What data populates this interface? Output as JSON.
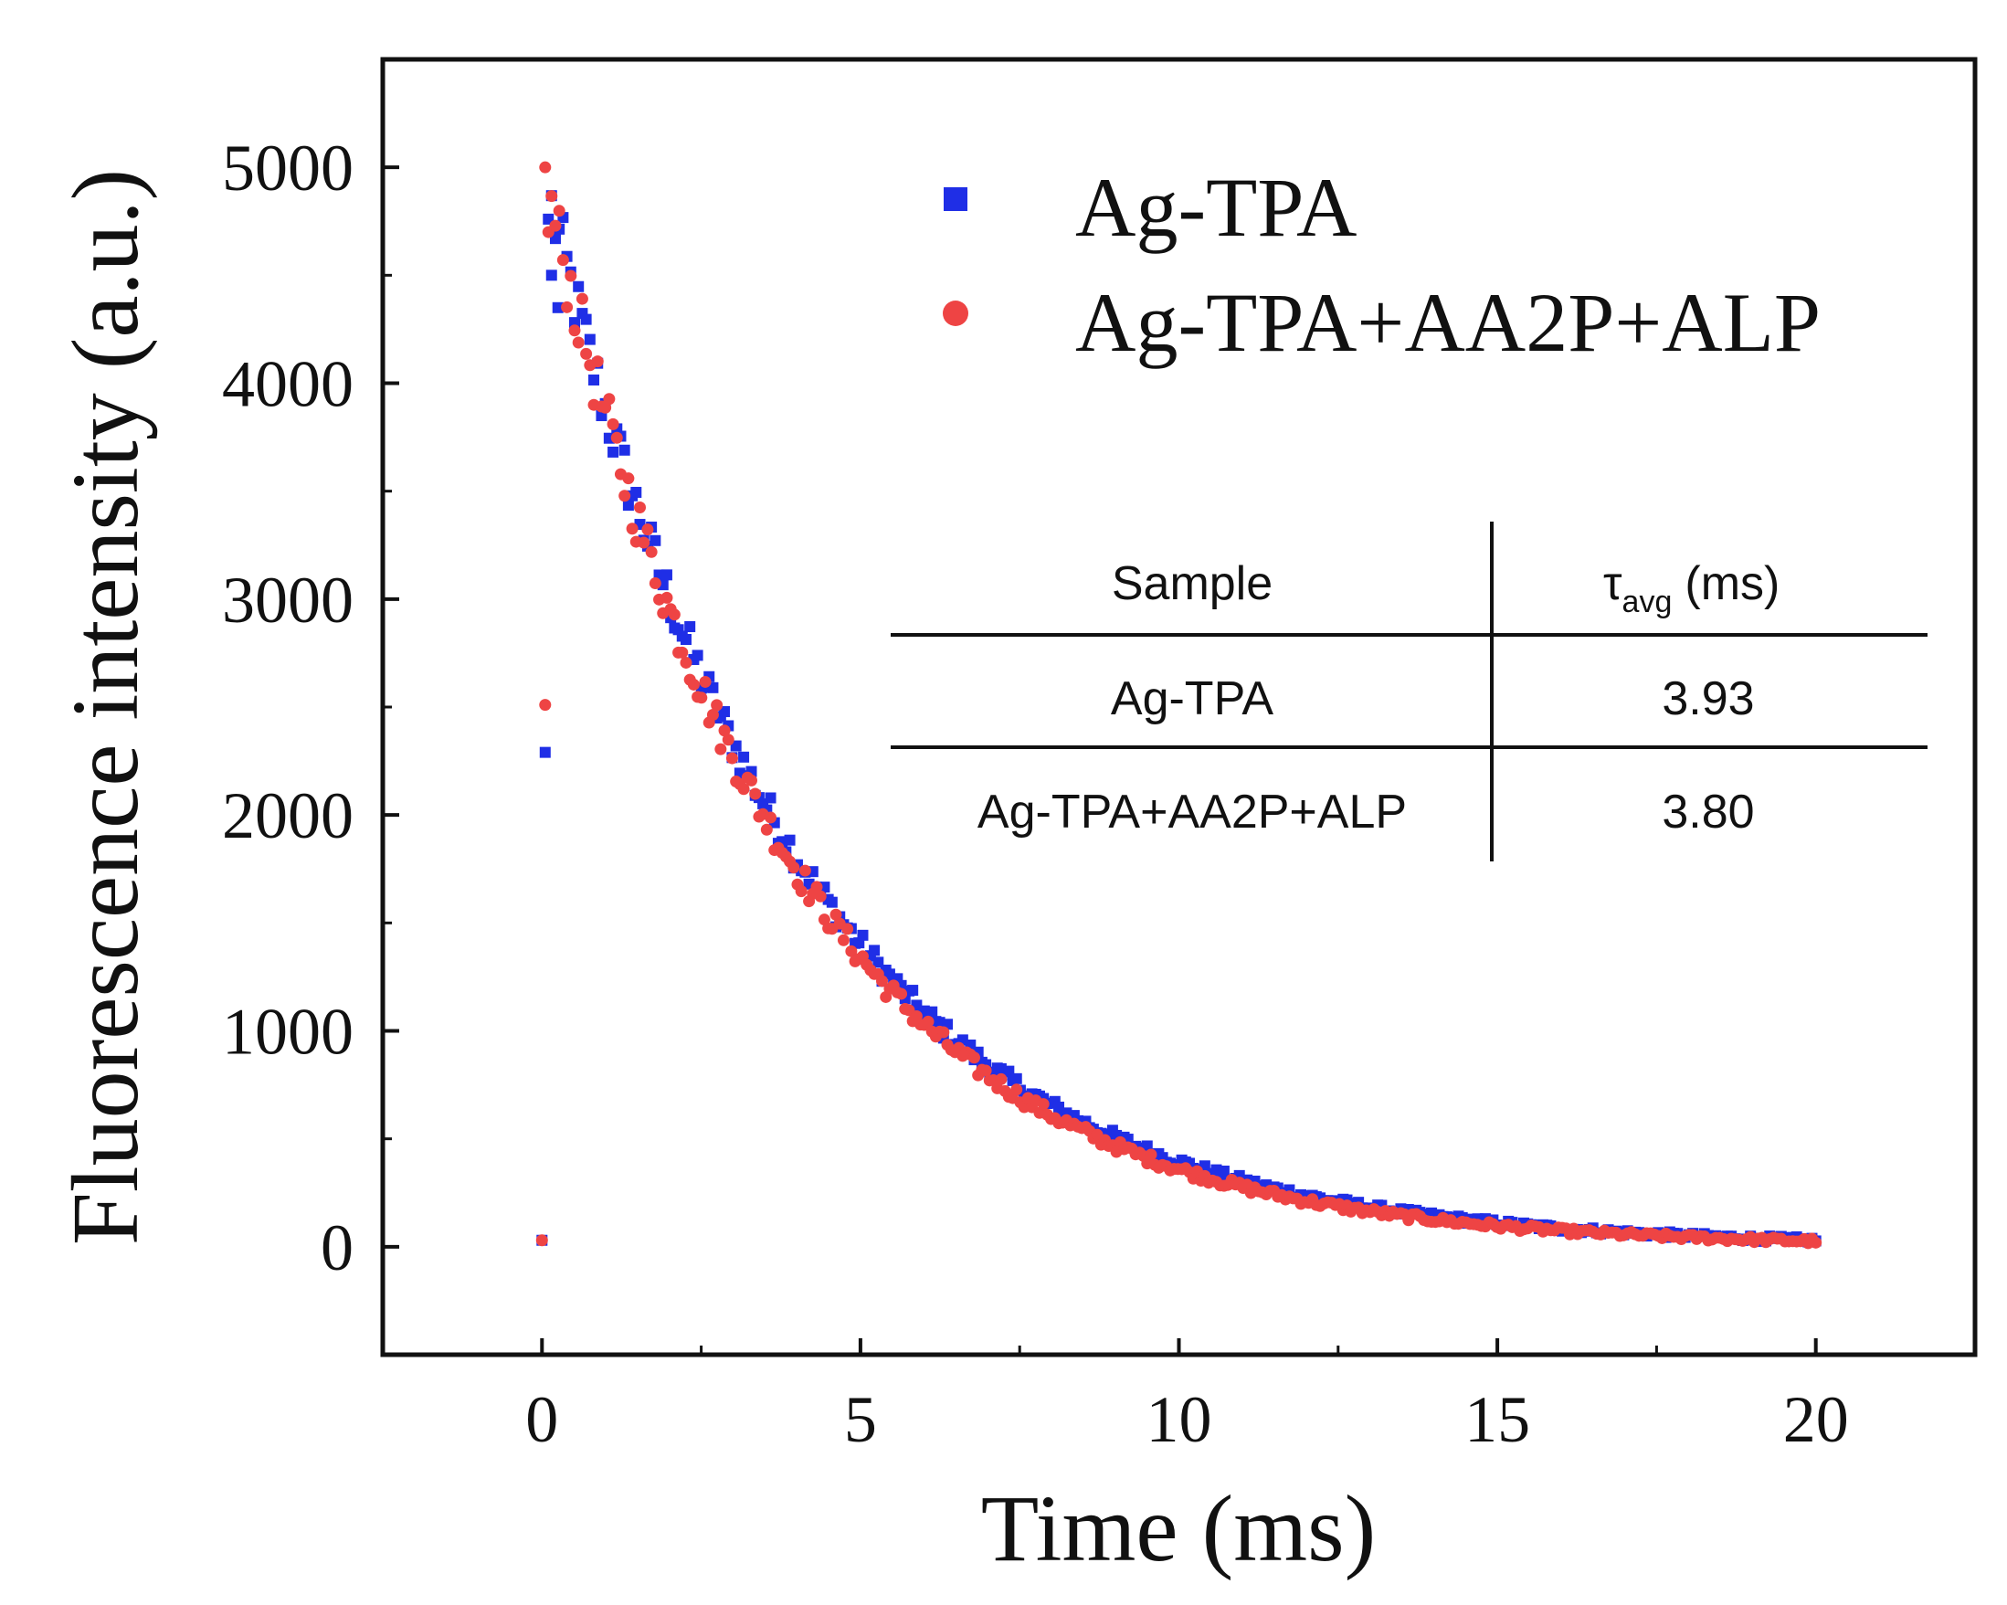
{
  "chart_data": {
    "type": "scatter",
    "title": "",
    "xlabel": "Time (ms)",
    "ylabel": "Fluorescence intensity (a.u.)",
    "xlim": [
      -2.5,
      22.5
    ],
    "ylim": [
      -500,
      5500
    ],
    "x_ticks": [
      0,
      5,
      10,
      15,
      20
    ],
    "y_ticks": [
      0,
      1000,
      2000,
      3000,
      4000,
      5000
    ],
    "x_tick_labels": [
      "0",
      "5",
      "10",
      "15",
      "20"
    ],
    "y_tick_labels": [
      "0",
      "1000",
      "2000",
      "3000",
      "4000",
      "5000"
    ],
    "grid": false,
    "legend_position": "top-right",
    "series": [
      {
        "name": "Ag-TPA",
        "marker": "square",
        "color": "#1f2ee6",
        "early_points": [
          [
            0,
            30
          ],
          [
            0.05,
            2290
          ],
          [
            0.1,
            4760
          ],
          [
            0.15,
            4500
          ],
          [
            0.25,
            4350
          ]
        ],
        "decay_model": {
          "amplitude": 5000,
          "tau": 3.93,
          "t_start": 0.15,
          "t_end": 20,
          "points": 330
        }
      },
      {
        "name": "Ag-TPA+AA2P+ALP",
        "marker": "circle",
        "color": "#ee4444",
        "early_points": [
          [
            0,
            30
          ],
          [
            0.05,
            2510
          ],
          [
            0.05,
            5000
          ],
          [
            0.1,
            4700
          ]
        ],
        "decay_model": {
          "amplitude": 5000,
          "tau": 3.8,
          "t_start": 0.15,
          "t_end": 20,
          "points": 330
        }
      }
    ],
    "inset_table": {
      "headers": [
        "Sample",
        "τ",
        "avg",
        "(ms)"
      ],
      "rows": [
        [
          "Ag-TPA",
          "3.93"
        ],
        [
          "Ag-TPA+AA2P+ALP",
          "3.80"
        ]
      ]
    }
  }
}
